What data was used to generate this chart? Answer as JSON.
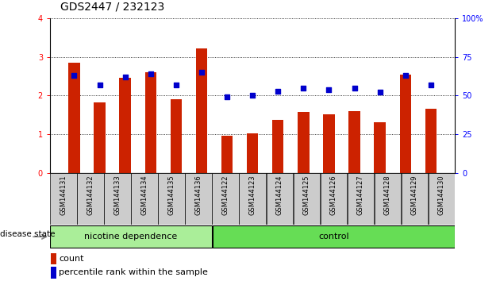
{
  "title": "GDS2447 / 232123",
  "categories": [
    "GSM144131",
    "GSM144132",
    "GSM144133",
    "GSM144134",
    "GSM144135",
    "GSM144136",
    "GSM144122",
    "GSM144123",
    "GSM144124",
    "GSM144125",
    "GSM144126",
    "GSM144127",
    "GSM144128",
    "GSM144129",
    "GSM144130"
  ],
  "bar_values": [
    2.85,
    1.82,
    2.45,
    2.6,
    1.9,
    3.22,
    0.95,
    1.02,
    1.38,
    1.58,
    1.52,
    1.6,
    1.3,
    2.55,
    1.65
  ],
  "dot_values_pct": [
    63,
    57,
    62,
    64,
    57,
    65,
    49,
    50,
    53,
    55,
    54,
    55,
    52,
    63,
    57
  ],
  "bar_color": "#cc2200",
  "dot_color": "#0000cc",
  "ylim_left": [
    0,
    4
  ],
  "ylim_right": [
    0,
    100
  ],
  "yticks_left": [
    0,
    1,
    2,
    3,
    4
  ],
  "yticks_right": [
    0,
    25,
    50,
    75,
    100
  ],
  "group1_label": "nicotine dependence",
  "group2_label": "control",
  "group1_count": 6,
  "group2_count": 9,
  "disease_state_label": "disease state",
  "legend_count_label": "count",
  "legend_pct_label": "percentile rank within the sample",
  "group1_color": "#aaee99",
  "group2_color": "#66dd55",
  "tick_bg_color": "#cccccc",
  "title_fontsize": 10,
  "axis_fontsize": 7,
  "label_fontsize": 8
}
